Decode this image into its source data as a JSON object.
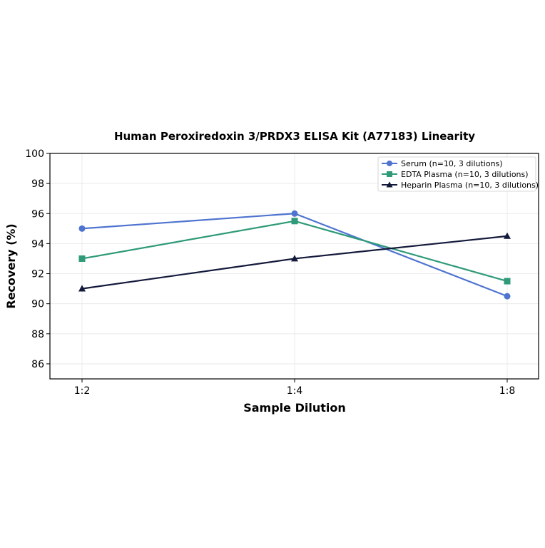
{
  "chart_data": {
    "type": "line",
    "title": "Human Peroxiredoxin 3/PRDX3 ELISA Kit (A77183) Linearity",
    "xlabel": "Sample Dilution",
    "ylabel": "Recovery (%)",
    "categories": [
      "1:2",
      "1:4",
      "1:8"
    ],
    "ylim": [
      85,
      100
    ],
    "yticks": [
      86,
      88,
      90,
      92,
      94,
      96,
      98,
      100
    ],
    "grid": true,
    "legend_position": "top-right",
    "series": [
      {
        "name": "Serum (n=10, 3 dilutions)",
        "values": [
          95,
          96,
          90.5
        ],
        "color": "#4f74d0",
        "marker": "circle"
      },
      {
        "name": "EDTA Plasma (n=10, 3 dilutions)",
        "values": [
          93,
          95.5,
          91.5
        ],
        "color": "#2e9a78",
        "marker": "square"
      },
      {
        "name": "Heparin Plasma (n=10, 3 dilutions)",
        "values": [
          91,
          93,
          94.5
        ],
        "color": "#13193a",
        "marker": "triangle"
      }
    ]
  }
}
